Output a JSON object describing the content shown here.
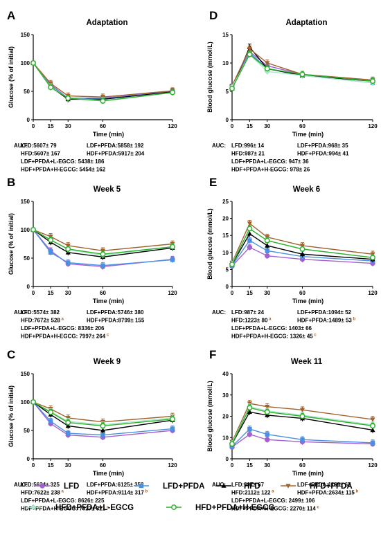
{
  "legend": [
    {
      "label": "LFD",
      "color": "#a45fd0",
      "marker": "circle-filled"
    },
    {
      "label": "LFD+PFDA",
      "color": "#4a90e2",
      "marker": "square-filled"
    },
    {
      "label": "HFD",
      "color": "#000000",
      "marker": "triangle-up"
    },
    {
      "label": "HFD+PFDA",
      "color": "#a0622d",
      "marker": "triangle-down"
    },
    {
      "label": "HFD+PFDA+L-EGCG",
      "color": "#a8e6c8",
      "marker": "diamond"
    },
    {
      "label": "HFD+PFDA+H-EGCG",
      "color": "#2db12d",
      "marker": "circle-open"
    }
  ],
  "chart_data": [
    {
      "panel": "A",
      "type": "line",
      "title": "Adaptation",
      "xlabel": "Time (min)",
      "ylabel": "Glucose (% of initial)",
      "x": [
        0,
        15,
        30,
        60,
        120
      ],
      "xticks": [
        "0",
        "15",
        "30",
        "60",
        "120"
      ],
      "ylim": [
        0,
        150
      ],
      "yticks": [
        "0",
        "50",
        "100",
        "150"
      ],
      "series": [
        {
          "name": "LFD",
          "values": [
            100,
            62,
            38,
            38,
            50
          ]
        },
        {
          "name": "LFD+PFDA",
          "values": [
            100,
            60,
            38,
            37,
            49
          ]
        },
        {
          "name": "HFD",
          "values": [
            100,
            58,
            36,
            36,
            49
          ]
        },
        {
          "name": "HFD+PFDA",
          "values": [
            100,
            64,
            42,
            40,
            51
          ]
        },
        {
          "name": "HFD+PFDA+L-EGCG",
          "values": [
            100,
            58,
            38,
            34,
            48
          ]
        },
        {
          "name": "HFD+PFDA+H-EGCG",
          "values": [
            100,
            57,
            38,
            33,
            48
          ]
        }
      ],
      "auc_label": "AUC:",
      "auc": [
        {
          "text": "LFD:5607± 79",
          "sup": ""
        },
        {
          "text": "LDF+PFDA:5858± 192",
          "sup": ""
        },
        {
          "text": "HFD:5607± 167",
          "sup": ""
        },
        {
          "text": "HDF+PFDA:5917± 204",
          "sup": ""
        },
        {
          "text": "LDF+PFDA+L-EGCG: 5438± 186",
          "sup": ""
        },
        {
          "text": "HDF+PFDA+H-EGCG: 5454± 162",
          "sup": ""
        }
      ]
    },
    {
      "panel": "D",
      "type": "line",
      "title": "Adaptation",
      "xlabel": "Time (min)",
      "ylabel": "Blood glucose (mmol/L)",
      "x": [
        0,
        15,
        30,
        60,
        120
      ],
      "xticks": [
        "0",
        "15",
        "30",
        "60",
        "120"
      ],
      "ylim": [
        0,
        15
      ],
      "yticks": [
        "0",
        "5",
        "10",
        "15"
      ],
      "series": [
        {
          "name": "LFD",
          "values": [
            6.0,
            12.0,
            9.5,
            8.0,
            6.8
          ]
        },
        {
          "name": "LFD+PFDA",
          "values": [
            5.8,
            11.8,
            9.0,
            7.8,
            6.5
          ]
        },
        {
          "name": "HFD",
          "values": [
            5.5,
            12.8,
            9.0,
            7.8,
            6.8
          ]
        },
        {
          "name": "HFD+PFDA",
          "values": [
            6.0,
            12.5,
            10.0,
            8.0,
            7.0
          ]
        },
        {
          "name": "HFD+PFDA+L-EGCG",
          "values": [
            5.8,
            11.5,
            8.5,
            7.8,
            6.5
          ]
        },
        {
          "name": "HFD+PFDA+H-EGCG",
          "values": [
            5.5,
            11.5,
            9.0,
            8.0,
            6.8
          ]
        }
      ],
      "auc_label": "AUC:",
      "auc": [
        {
          "text": "LFD:996± 14",
          "sup": ""
        },
        {
          "text": "LDF+PFDA:968± 35",
          "sup": ""
        },
        {
          "text": "HFD:987± 21",
          "sup": ""
        },
        {
          "text": "HDF+PFDA:994± 41",
          "sup": ""
        },
        {
          "text": "LDF+PFDA+L-EGCG: 947± 36",
          "sup": ""
        },
        {
          "text": "HDF+PFDA+H-EGCG: 978± 26",
          "sup": ""
        }
      ]
    },
    {
      "panel": "B",
      "type": "line",
      "title": "Week 5",
      "xlabel": "Time (min)",
      "ylabel": "Glucose (% of initial)",
      "x": [
        0,
        15,
        30,
        60,
        120
      ],
      "xticks": [
        "0",
        "15",
        "30",
        "60",
        "120"
      ],
      "ylim": [
        0,
        150
      ],
      "yticks": [
        "0",
        "50",
        "100",
        "150"
      ],
      "series": [
        {
          "name": "LFD",
          "values": [
            100,
            63,
            40,
            35,
            48
          ]
        },
        {
          "name": "LFD+PFDA",
          "values": [
            100,
            60,
            42,
            37,
            47
          ]
        },
        {
          "name": "HFD",
          "values": [
            100,
            78,
            60,
            52,
            68
          ]
        },
        {
          "name": "HFD+PFDA",
          "values": [
            100,
            88,
            72,
            63,
            75
          ]
        },
        {
          "name": "HFD+PFDA+L-EGCG",
          "values": [
            100,
            82,
            65,
            55,
            70
          ]
        },
        {
          "name": "HFD+PFDA+H-EGCG",
          "values": [
            100,
            82,
            66,
            57,
            70
          ]
        }
      ],
      "auc_label": "AUC:",
      "auc": [
        {
          "text": "LFD:5574± 382",
          "sup": ""
        },
        {
          "text": "LDF+PFDA:5746± 380",
          "sup": ""
        },
        {
          "text": "HFD:7672± 528",
          "sup": "a"
        },
        {
          "text": "HDF+PFDA:8799± 155",
          "sup": ""
        },
        {
          "text": "LDF+PFDA+L-EGCG: 8336± 206",
          "sup": ""
        },
        {
          "text": "HDF+PFDA+H-EGCG: 7997± 264",
          "sup": "c"
        }
      ]
    },
    {
      "panel": "E",
      "type": "line",
      "title": "Week 6",
      "xlabel": "Time (min)",
      "ylabel": "Blood glucose (mmol/L)",
      "x": [
        0,
        15,
        30,
        60,
        120
      ],
      "xticks": [
        "0",
        "15",
        "30",
        "60",
        "120"
      ],
      "ylim": [
        0,
        25
      ],
      "yticks": [
        "0",
        "5",
        "10",
        "15",
        "20",
        "25"
      ],
      "series": [
        {
          "name": "LFD",
          "values": [
            6.0,
            11.5,
            9.0,
            8.0,
            6.8
          ]
        },
        {
          "name": "LFD+PFDA",
          "values": [
            6.2,
            13.5,
            10.5,
            8.8,
            7.5
          ]
        },
        {
          "name": "HFD",
          "values": [
            6.5,
            15.5,
            12.0,
            9.5,
            8.0
          ]
        },
        {
          "name": "HFD+PFDA",
          "values": [
            7.0,
            18.5,
            14.5,
            12.0,
            9.5
          ]
        },
        {
          "name": "HFD+PFDA+L-EGCG",
          "values": [
            6.8,
            17.0,
            13.5,
            11.0,
            8.5
          ]
        },
        {
          "name": "HFD+PFDA+H-EGCG",
          "values": [
            6.5,
            17.0,
            13.5,
            11.0,
            8.5
          ]
        }
      ],
      "auc_label": "AUC:",
      "auc": [
        {
          "text": "LFD:987± 24",
          "sup": ""
        },
        {
          "text": "LDF+PFDA:1094± 52",
          "sup": ""
        },
        {
          "text": "HFD:1223± 80",
          "sup": "a"
        },
        {
          "text": "HDF+PFDA:1489± 53",
          "sup": "b"
        },
        {
          "text": "LDF+PFDA+L-EGCG: 1403± 66",
          "sup": ""
        },
        {
          "text": "HDF+PFDA+H-EGCG: 1326± 45",
          "sup": "c"
        }
      ]
    },
    {
      "panel": "C",
      "type": "line",
      "title": "Week 9",
      "xlabel": "Time (min)",
      "ylabel": "Glucose (% of initial)",
      "x": [
        0,
        15,
        30,
        60,
        120
      ],
      "xticks": [
        "0",
        "15",
        "30",
        "60",
        "120"
      ],
      "ylim": [
        0,
        150
      ],
      "yticks": [
        "0",
        "50",
        "100",
        "150"
      ],
      "series": [
        {
          "name": "LFD",
          "values": [
            100,
            62,
            42,
            38,
            50
          ]
        },
        {
          "name": "LFD+PFDA",
          "values": [
            100,
            66,
            45,
            42,
            53
          ]
        },
        {
          "name": "HFD",
          "values": [
            100,
            78,
            58,
            50,
            68
          ]
        },
        {
          "name": "HFD+PFDA",
          "values": [
            100,
            88,
            72,
            65,
            75
          ]
        },
        {
          "name": "HFD+PFDA+L-EGCG",
          "values": [
            100,
            83,
            66,
            60,
            72
          ]
        },
        {
          "name": "HFD+PFDA+H-EGCG",
          "values": [
            100,
            82,
            64,
            58,
            70
          ]
        }
      ],
      "auc_label": "AUC:",
      "auc": [
        {
          "text": "LFD:5634± 325",
          "sup": ""
        },
        {
          "text": "LDF+PFDA:6125± 353",
          "sup": ""
        },
        {
          "text": "HFD:7622± 238",
          "sup": "a"
        },
        {
          "text": "HDF+PFDA:9114± 317",
          "sup": "b"
        },
        {
          "text": "LDF+PFDA+L-EGCG: 8626± 225",
          "sup": ""
        },
        {
          "text": "HDF+PFDA+H-EGCG: 7627± 321",
          "sup": "c"
        }
      ]
    },
    {
      "panel": "F",
      "type": "line",
      "title": "Week 11",
      "xlabel": "Time (min)",
      "ylabel": "Blood glucose (mmol/L)",
      "x": [
        0,
        15,
        30,
        60,
        120
      ],
      "xticks": [
        "0",
        "15",
        "30",
        "60",
        "120"
      ],
      "ylim": [
        0,
        40
      ],
      "yticks": [
        "0",
        "10",
        "20",
        "30",
        "40"
      ],
      "series": [
        {
          "name": "LFD",
          "values": [
            5.5,
            11.5,
            9.0,
            8.0,
            7.0
          ]
        },
        {
          "name": "LFD+PFDA",
          "values": [
            5.8,
            14.0,
            11.5,
            9.0,
            7.5
          ]
        },
        {
          "name": "HFD",
          "values": [
            7.0,
            22.0,
            20.5,
            19.0,
            13.5
          ]
        },
        {
          "name": "HFD+PFDA",
          "values": [
            8.0,
            26.0,
            24.5,
            23.0,
            18.5
          ]
        },
        {
          "name": "HFD+PFDA+L-EGCG",
          "values": [
            7.5,
            24.5,
            22.5,
            20.5,
            16.0
          ]
        },
        {
          "name": "HFD+PFDA+H-EGCG",
          "values": [
            7.0,
            24.0,
            22.0,
            20.0,
            15.5
          ]
        }
      ],
      "auc_label": "AUC:",
      "auc": [
        {
          "text": "LFD:997± 67",
          "sup": ""
        },
        {
          "text": "LDF+PFDA:1169± 67",
          "sup": ""
        },
        {
          "text": "HFD:2112± 122",
          "sup": "a"
        },
        {
          "text": "HDF+PFDA:2634± 115",
          "sup": "b"
        },
        {
          "text": "LDF+PFDA+L-EGCG: 2499± 106",
          "sup": ""
        },
        {
          "text": "HDF+PFDA+H-EGCG: 2270± 114",
          "sup": "c"
        }
      ]
    }
  ]
}
